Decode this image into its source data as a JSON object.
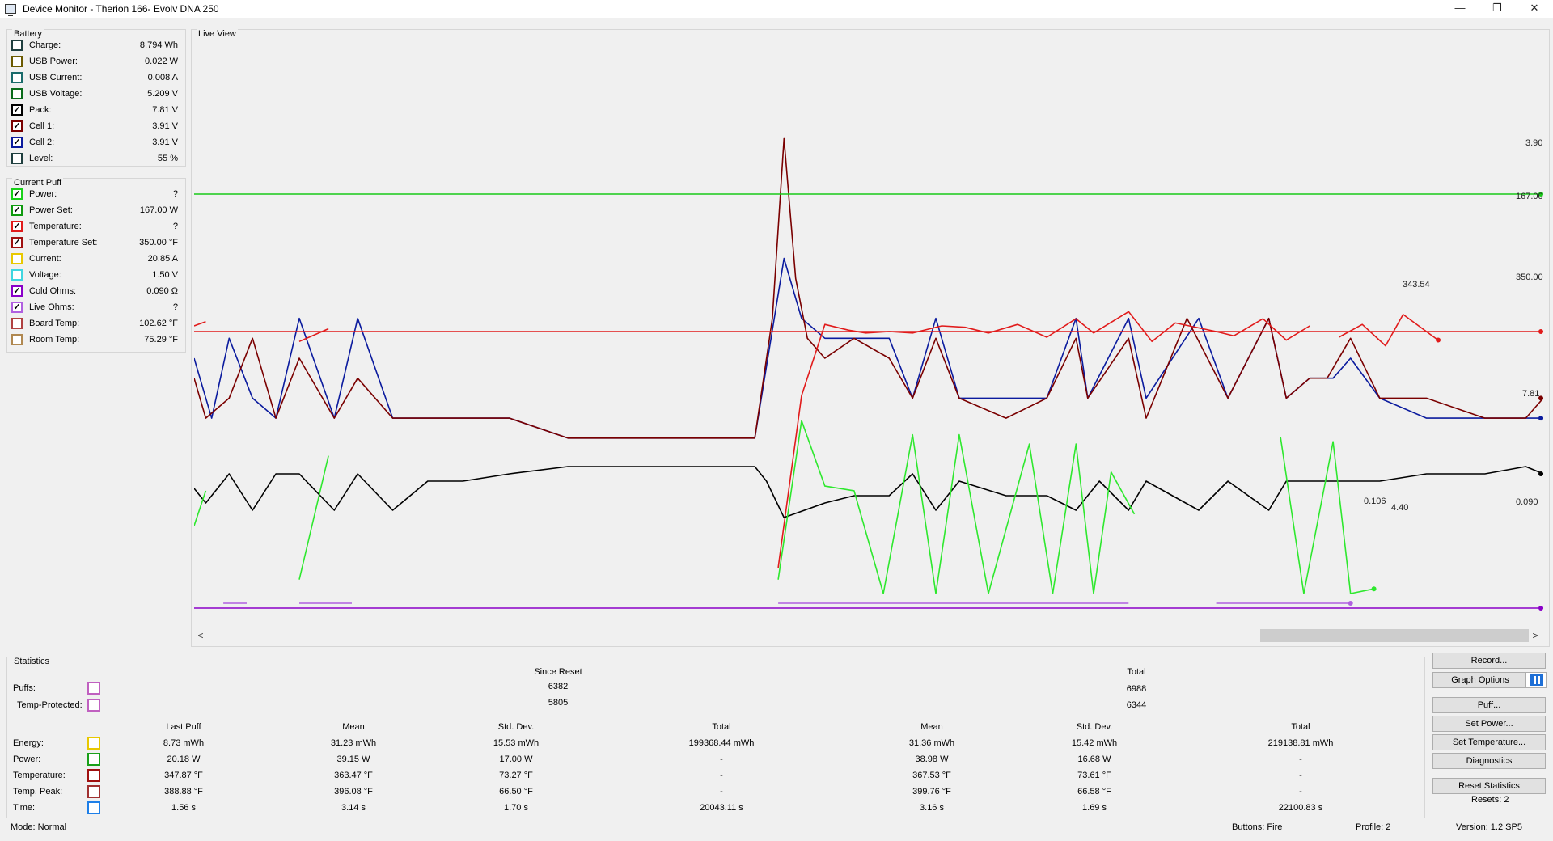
{
  "window": {
    "title": "Device Monitor - Therion 166- Evolv DNA 250",
    "controls": {
      "minimize": "—",
      "restore": "❐",
      "close": "✕"
    }
  },
  "battery": {
    "title": "Battery",
    "items": [
      {
        "label": "Charge:",
        "value": "8.794 Wh",
        "color": "#1f3f3f",
        "checked": false
      },
      {
        "label": "USB Power:",
        "value": "0.022 W",
        "color": "#6b5a00",
        "checked": false
      },
      {
        "label": "USB Current:",
        "value": "0.008 A",
        "color": "#1a6b6b",
        "checked": false
      },
      {
        "label": "USB Voltage:",
        "value": "5.209 V",
        "color": "#0a6b1a",
        "checked": false
      },
      {
        "label": "Pack:",
        "value": "7.81 V",
        "color": "#000000",
        "checked": true
      },
      {
        "label": "Cell 1:",
        "value": "3.91 V",
        "color": "#7a0000",
        "checked": true
      },
      {
        "label": "Cell 2:",
        "value": "3.91 V",
        "color": "#0b1b9e",
        "checked": true
      },
      {
        "label": "Level:",
        "value": "55 %",
        "color": "#1f3f3f",
        "checked": false
      }
    ]
  },
  "current_puff": {
    "title": "Current Puff",
    "items": [
      {
        "label": "Power:",
        "value": "?",
        "color": "#19d119",
        "checked": true
      },
      {
        "label": "Power Set:",
        "value": "167.00 W",
        "color": "#0f9a0f",
        "checked": true
      },
      {
        "label": "Temperature:",
        "value": "?",
        "color": "#e11b1b",
        "checked": true
      },
      {
        "label": "Temperature Set:",
        "value": "350.00 °F",
        "color": "#a01010",
        "checked": true
      },
      {
        "label": "Current:",
        "value": "20.85 A",
        "color": "#e8c800",
        "checked": false
      },
      {
        "label": "Voltage:",
        "value": "1.50 V",
        "color": "#3fd6e0",
        "checked": false
      },
      {
        "label": "Cold Ohms:",
        "value": "0.090 Ω",
        "color": "#8a00c8",
        "checked": true
      },
      {
        "label": "Live Ohms:",
        "value": "?",
        "color": "#b060e0",
        "checked": true
      },
      {
        "label": "Board Temp:",
        "value": "102.62 °F",
        "color": "#b04040",
        "checked": false
      },
      {
        "label": "Room Temp:",
        "value": "75.29 °F",
        "color": "#b08850",
        "checked": false
      }
    ]
  },
  "live_view": {
    "title": "Live View",
    "scroll_left": "<",
    "scroll_right": ">"
  },
  "chart_data": {
    "type": "line",
    "title": "Live View",
    "xlabel": "",
    "ylabel": "",
    "grid": false,
    "end_labels": [
      "3.90",
      "167.00",
      "343.54",
      "350.00",
      "7.81",
      "0.106",
      "4.40",
      "0.090"
    ],
    "series": [
      {
        "name": "Cell 2",
        "color": "#0b1b9e",
        "unit": "V",
        "values": [
          [
            0,
            3.88
          ],
          [
            3,
            3.91
          ],
          [
            6,
            3.87
          ],
          [
            10,
            3.9
          ],
          [
            14,
            3.91
          ],
          [
            18,
            3.86
          ],
          [
            24,
            3.91
          ],
          [
            28,
            3.86
          ],
          [
            34,
            3.91
          ],
          [
            40,
            3.91
          ],
          [
            46,
            3.91
          ],
          [
            54,
            3.91
          ],
          [
            64,
            3.92
          ],
          [
            74,
            3.92
          ],
          [
            84,
            3.92
          ],
          [
            96,
            3.92
          ],
          [
            101,
            3.83
          ],
          [
            104,
            3.86
          ],
          [
            108,
            3.87
          ],
          [
            113,
            3.87
          ],
          [
            119,
            3.87
          ],
          [
            123,
            3.9
          ],
          [
            127,
            3.86
          ],
          [
            131,
            3.9
          ],
          [
            139,
            3.9
          ],
          [
            146,
            3.9
          ],
          [
            151,
            3.86
          ],
          [
            153,
            3.9
          ],
          [
            160,
            3.86
          ],
          [
            163,
            3.9
          ],
          [
            172,
            3.86
          ],
          [
            177,
            3.9
          ],
          [
            184,
            3.86
          ],
          [
            187,
            3.9
          ],
          [
            191,
            3.89
          ],
          [
            195,
            3.89
          ],
          [
            198,
            3.88
          ],
          [
            203,
            3.9
          ],
          [
            211,
            3.91
          ],
          [
            221,
            3.91
          ],
          [
            228,
            3.91
          ],
          [
            231,
            3.91
          ]
        ]
      },
      {
        "name": "Cell 1",
        "color": "#7a0000",
        "unit": "V",
        "values": [
          [
            0,
            3.89
          ],
          [
            2,
            3.91
          ],
          [
            6,
            3.9
          ],
          [
            10,
            3.87
          ],
          [
            14,
            3.91
          ],
          [
            18,
            3.88
          ],
          [
            24,
            3.91
          ],
          [
            28,
            3.89
          ],
          [
            34,
            3.91
          ],
          [
            40,
            3.91
          ],
          [
            46,
            3.91
          ],
          [
            54,
            3.91
          ],
          [
            64,
            3.92
          ],
          [
            74,
            3.92
          ],
          [
            84,
            3.92
          ],
          [
            96,
            3.92
          ],
          [
            99,
            3.86
          ],
          [
            101,
            3.77
          ],
          [
            103,
            3.84
          ],
          [
            105,
            3.87
          ],
          [
            108,
            3.88
          ],
          [
            113,
            3.87
          ],
          [
            119,
            3.88
          ],
          [
            123,
            3.9
          ],
          [
            127,
            3.87
          ],
          [
            131,
            3.9
          ],
          [
            139,
            3.91
          ],
          [
            146,
            3.9
          ],
          [
            151,
            3.87
          ],
          [
            153,
            3.9
          ],
          [
            160,
            3.87
          ],
          [
            163,
            3.91
          ],
          [
            170,
            3.86
          ],
          [
            177,
            3.9
          ],
          [
            184,
            3.86
          ],
          [
            187,
            3.9
          ],
          [
            191,
            3.89
          ],
          [
            194,
            3.89
          ],
          [
            198,
            3.87
          ],
          [
            203,
            3.9
          ],
          [
            211,
            3.9
          ],
          [
            221,
            3.91
          ],
          [
            228,
            3.91
          ],
          [
            231,
            3.9
          ]
        ]
      },
      {
        "name": "Power Set",
        "color": "#19c919",
        "unit": "W",
        "values": [
          [
            0,
            167.0
          ],
          [
            231,
            167.0
          ]
        ]
      },
      {
        "name": "Temperature Set",
        "color": "#e11b1b",
        "unit": "°F",
        "values": [
          [
            0,
            350.0
          ],
          [
            231,
            350.0
          ]
        ]
      },
      {
        "name": "Temperature",
        "color": "#e11b1b",
        "unit": "°F",
        "segments": [
          [
            [
              0,
              354
            ],
            [
              2,
              357
            ]
          ],
          [
            [
              18,
              343
            ],
            [
              23,
              352
            ]
          ],
          [
            [
              100,
              184
            ],
            [
              104,
              305
            ],
            [
              108,
              355
            ],
            [
              112,
              351
            ],
            [
              115,
              349
            ],
            [
              119,
              350
            ],
            [
              123,
              349
            ],
            [
              128,
              354
            ],
            [
              132,
              353
            ],
            [
              136,
              349
            ],
            [
              141,
              355
            ],
            [
              146,
              346
            ],
            [
              151,
              359
            ],
            [
              154,
              349
            ],
            [
              160,
              364
            ],
            [
              164,
              343
            ],
            [
              168,
              356
            ],
            [
              175,
              350
            ],
            [
              178,
              347
            ],
            [
              183,
              359
            ],
            [
              187,
              344
            ],
            [
              191,
              354
            ]
          ],
          [
            [
              196,
              346
            ],
            [
              200,
              355
            ],
            [
              204,
              340
            ],
            [
              207,
              362
            ],
            [
              213,
              344
            ]
          ]
        ]
      },
      {
        "name": "Pack",
        "color": "#000000",
        "unit": "V",
        "values": [
          [
            0,
            7.79
          ],
          [
            2,
            7.77
          ],
          [
            6,
            7.81
          ],
          [
            10,
            7.76
          ],
          [
            14,
            7.81
          ],
          [
            18,
            7.81
          ],
          [
            24,
            7.76
          ],
          [
            28,
            7.81
          ],
          [
            34,
            7.76
          ],
          [
            40,
            7.8
          ],
          [
            46,
            7.8
          ],
          [
            54,
            7.81
          ],
          [
            64,
            7.82
          ],
          [
            74,
            7.82
          ],
          [
            84,
            7.82
          ],
          [
            96,
            7.82
          ],
          [
            98,
            7.8
          ],
          [
            101,
            7.75
          ],
          [
            108,
            7.77
          ],
          [
            113,
            7.78
          ],
          [
            119,
            7.78
          ],
          [
            123,
            7.81
          ],
          [
            127,
            7.76
          ],
          [
            131,
            7.8
          ],
          [
            139,
            7.78
          ],
          [
            146,
            7.78
          ],
          [
            151,
            7.76
          ],
          [
            155,
            7.8
          ],
          [
            160,
            7.76
          ],
          [
            163,
            7.8
          ],
          [
            172,
            7.76
          ],
          [
            177,
            7.8
          ],
          [
            184,
            7.76
          ],
          [
            187,
            7.8
          ],
          [
            191,
            7.8
          ],
          [
            194,
            7.8
          ],
          [
            198,
            7.8
          ],
          [
            203,
            7.8
          ],
          [
            211,
            7.81
          ],
          [
            221,
            7.81
          ],
          [
            228,
            7.82
          ],
          [
            231,
            7.81
          ]
        ]
      },
      {
        "name": "Power",
        "color": "#2ee82e",
        "unit": "W",
        "segments": [
          [
            [
              0,
              25
            ],
            [
              2,
              40
            ]
          ],
          [
            [
              18,
              2
            ],
            [
              23,
              55
            ]
          ],
          [
            [
              100,
              2
            ],
            [
              104,
              70
            ],
            [
              108,
              42
            ],
            [
              113,
              40
            ],
            [
              118,
              -4
            ],
            [
              123,
              64
            ],
            [
              127,
              -4
            ],
            [
              131,
              64
            ],
            [
              136,
              -4
            ],
            [
              143,
              60
            ],
            [
              147,
              -4
            ],
            [
              151,
              60
            ],
            [
              154,
              -4
            ],
            [
              157,
              48
            ],
            [
              161,
              30
            ]
          ],
          [
            [
              186,
              63
            ],
            [
              190,
              -4
            ],
            [
              195,
              61
            ],
            [
              198,
              -4
            ],
            [
              202,
              -2
            ]
          ]
        ]
      },
      {
        "name": "Cold Ohms",
        "color": "#8a00c8",
        "unit": "Ω",
        "values": [
          [
            0,
            0.09
          ],
          [
            231,
            0.09
          ]
        ]
      },
      {
        "name": "Live Ohms",
        "color": "#b060e0",
        "unit": "Ω",
        "segments": [
          [
            [
              5,
              0.106
            ],
            [
              9,
              0.106
            ]
          ],
          [
            [
              18,
              0.106
            ],
            [
              27,
              0.106
            ]
          ],
          [
            [
              100,
              0.106
            ],
            [
              160,
              0.106
            ]
          ],
          [
            [
              175,
              0.106
            ],
            [
              198,
              0.106
            ]
          ]
        ]
      }
    ]
  },
  "statistics": {
    "title": "Statistics",
    "since_reset_label": "Since Reset",
    "total_label": "Total",
    "puffs": {
      "label": "Puffs:",
      "since_reset": "6382",
      "total": "6988",
      "color": "#c060c0"
    },
    "temp_protected": {
      "label": "Temp-Protected:",
      "since_reset": "5805",
      "total": "6344",
      "color": "#c060c0"
    },
    "columns": [
      "Last Puff",
      "Mean",
      "Std. Dev.",
      "Total",
      "Mean",
      "Std. Dev.",
      "Total"
    ],
    "rows": [
      {
        "label": "Energy:",
        "color": "#e8c800",
        "cells": [
          "8.73 mWh",
          "31.23 mWh",
          "15.53 mWh",
          "199368.44 mWh",
          "31.36 mWh",
          "15.42 mWh",
          "219138.81 mWh"
        ]
      },
      {
        "label": "Power:",
        "color": "#19a019",
        "cells": [
          "20.18 W",
          "39.15 W",
          "17.00 W",
          "-",
          "38.98 W",
          "16.68 W",
          "-"
        ]
      },
      {
        "label": "Temperature:",
        "color": "#a01010",
        "cells": [
          "347.87 °F",
          "363.47 °F",
          "73.27 °F",
          "-",
          "367.53 °F",
          "73.61 °F",
          "-"
        ]
      },
      {
        "label": "Temp. Peak:",
        "color": "#a03030",
        "cells": [
          "388.88 °F",
          "396.08 °F",
          "66.50 °F",
          "-",
          "399.76 °F",
          "66.58 °F",
          "-"
        ]
      },
      {
        "label": "Time:",
        "color": "#1e7fe8",
        "cells": [
          "1.56 s",
          "3.14 s",
          "1.70 s",
          "20043.11 s",
          "3.16 s",
          "1.69 s",
          "22100.83 s"
        ]
      }
    ]
  },
  "buttons": {
    "record": "Record...",
    "graph_options": "Graph Options",
    "puff": "Puff...",
    "set_power": "Set Power...",
    "set_temperature": "Set Temperature...",
    "diagnostics": "Diagnostics",
    "reset_statistics": "Reset Statistics",
    "resets": "Resets: 2"
  },
  "status_bar": {
    "mode": "Mode: Normal",
    "buttons": "Buttons: Fire",
    "profile": "Profile: 2",
    "version": "Version: 1.2 SP5"
  }
}
